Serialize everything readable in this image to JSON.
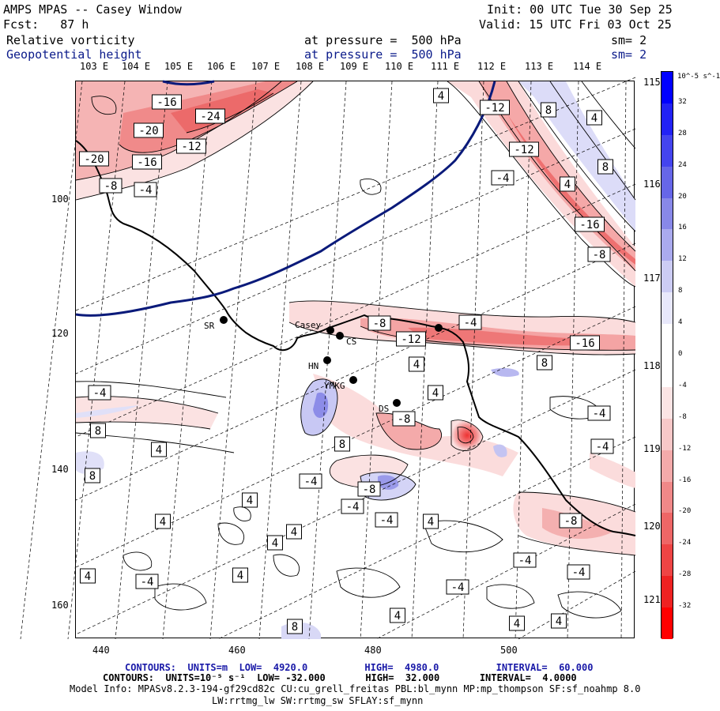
{
  "header": {
    "product": "AMPS MPAS -- Casey Window",
    "forecast": "Fcst:   87 h",
    "init": "Init: 00 UTC Tue 30 Sep 25",
    "valid": "Valid: 15 UTC Fri 03 Oct 25",
    "field1_name": "Relative vorticity",
    "field1_level": "at pressure =  500 hPa",
    "field1_smooth": "sm= 2",
    "field2_name": "Geopotential height",
    "field2_level": "at pressure =  500 hPa",
    "field2_smooth": "sm= 2"
  },
  "longitude_labels_top": [
    "103 E",
    "104 E",
    "105 E",
    "106 E",
    "107 E",
    "108 E",
    "109 E",
    "110 E",
    "111 E",
    "112 E",
    "113 E",
    "114 E"
  ],
  "longitude_labels_right": [
    "115 E",
    "116 E",
    "117 E",
    "118 E",
    "119 E",
    "120 E",
    "121 E"
  ],
  "y_axis_labels": [
    "100",
    "120",
    "140",
    "160"
  ],
  "x_axis_labels": [
    "440",
    "460",
    "480",
    "500"
  ],
  "stations": [
    {
      "name": "SR"
    },
    {
      "name": "Casey"
    },
    {
      "name": "CS"
    },
    {
      "name": "HN"
    },
    {
      "name": "YMKG"
    },
    {
      "name": "DS"
    }
  ],
  "contour_labels": [
    "-16",
    "-24",
    "-20",
    "-12",
    "-20",
    "-16",
    "-8",
    "-4",
    "4",
    "-12",
    "8",
    "4",
    "-12",
    "-4",
    "8",
    "4",
    "-16",
    "-8",
    "-8",
    "-12",
    "-4",
    "-16",
    "8",
    "4",
    "-4",
    "4",
    "-8",
    "-4",
    "-4",
    "8",
    "8",
    "4",
    "-8",
    "8",
    "4",
    "-4",
    "4",
    "-4",
    "-4",
    "4",
    "4",
    "4",
    "-8",
    "-4",
    "4",
    "-4",
    "4",
    "-4",
    "-4",
    "4",
    "8",
    "4",
    "4"
  ],
  "colorbar": {
    "units_label": "10^-5 s^-1",
    "ticks": [
      "32",
      "28",
      "24",
      "20",
      "16",
      "12",
      "8",
      "4",
      "0",
      "-4",
      "-8",
      "-12",
      "-16",
      "-20",
      "-24",
      "-28",
      "-32"
    ],
    "colors": [
      "#0000ff",
      "#2222f5",
      "#4444ee",
      "#6666e8",
      "#8888e8",
      "#aaaaee",
      "#ccccf4",
      "#e8e8fb",
      "#ffffff",
      "#ffffff",
      "#fbe4e4",
      "#f7c8c8",
      "#f4aaaa",
      "#f08888",
      "#ee6666",
      "#ee4444",
      "#ee2222",
      "#ff0000"
    ]
  },
  "footer": {
    "line1_contours": "CONTOURS:  UNITS=m  LOW=  4920.0          HIGH=  4980.0          INTERVAL=  60.000",
    "line2_contours": "CONTOURS:  UNITS=10⁻⁵ s⁻¹  LOW= -32.000       HIGH=  32.000       INTERVAL=  4.0000",
    "line3_model": "Model Info: MPASv8.2.3-194-gf29cd82c CU:cu_grell_freitas PBL:bl_mynn MP:mp_thompson SF:sf_noahmp 8.0",
    "line4_model": "LW:rrtmg_lw SW:rrtmg_sw SFLAY:sf_mynn"
  },
  "colors": {
    "height_contour": "#0a1a7a",
    "positive_vorticity": "#ee4444",
    "negative_vorticity": "#4444ee"
  }
}
